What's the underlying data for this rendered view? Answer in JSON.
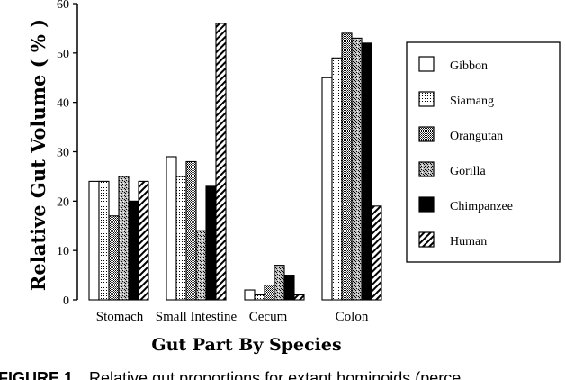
{
  "chart_data": {
    "type": "bar",
    "title": "",
    "xlabel": "Gut Part By Species",
    "ylabel": "Relative Gut Volume ( % )",
    "ylim": [
      0,
      60
    ],
    "yticks": [
      "0",
      "10",
      "20",
      "30",
      "40",
      "50",
      "60"
    ],
    "categories": [
      "Stomach",
      "Small Intestine",
      "Cecum",
      "Colon"
    ],
    "legend_position": "right",
    "grid": false,
    "series": [
      {
        "name": "Gibbon",
        "pattern": "white",
        "values": [
          24,
          29,
          2,
          45
        ]
      },
      {
        "name": "Siamang",
        "pattern": "fine-dots",
        "values": [
          24,
          25,
          1,
          49
        ]
      },
      {
        "name": "Orangutan",
        "pattern": "dense-dots",
        "values": [
          17,
          28,
          3,
          54
        ]
      },
      {
        "name": "Gorilla",
        "pattern": "speckled",
        "values": [
          25,
          14,
          7,
          53
        ]
      },
      {
        "name": "Chimpanzee",
        "pattern": "black",
        "values": [
          20,
          23,
          5,
          52
        ]
      },
      {
        "name": "Human",
        "pattern": "diagonal-hatch",
        "values": [
          24,
          56,
          1,
          19
        ]
      }
    ]
  },
  "caption": {
    "label": "FIGURE 1.",
    "text": "Relative gut proportions for extant hominoids (perce"
  }
}
